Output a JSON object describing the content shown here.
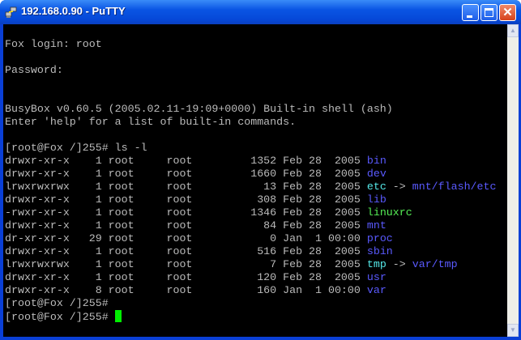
{
  "window": {
    "title": "192.168.0.90 - PuTTY",
    "icon": "putty-computers-icon",
    "buttons": [
      "minimize",
      "maximize",
      "close"
    ]
  },
  "colors": {
    "text": "#bbbbbb",
    "dir": "#5a5aff",
    "link": "#55e8e8",
    "exec": "#55ee55",
    "cursor": "#00ee00",
    "background": "#000000"
  },
  "terminal": {
    "lines": [
      [],
      [
        {
          "t": "Fox login: root"
        }
      ],
      [],
      [
        {
          "t": "Password:"
        }
      ],
      [],
      [],
      [
        {
          "t": "BusyBox v0.60.5 (2005.02.11-19:09+0000) Built-in shell (ash)"
        }
      ],
      [
        {
          "t": "Enter 'help' for a list of built-in commands."
        }
      ],
      [],
      [
        {
          "t": "[root@Fox /]255# ls -l"
        }
      ],
      [
        {
          "t": "drwxr-xr-x    1 root     root         1352 Feb 28  2005 "
        },
        {
          "t": "bin",
          "c": "dir"
        }
      ],
      [
        {
          "t": "drwxr-xr-x    1 root     root         1660 Feb 28  2005 "
        },
        {
          "t": "dev",
          "c": "dir"
        }
      ],
      [
        {
          "t": "lrwxrwxrwx    1 root     root           13 Feb 28  2005 "
        },
        {
          "t": "etc",
          "c": "link"
        },
        {
          "t": " -> "
        },
        {
          "t": "mnt/flash/etc",
          "c": "dir"
        }
      ],
      [
        {
          "t": "drwxr-xr-x    1 root     root          308 Feb 28  2005 "
        },
        {
          "t": "lib",
          "c": "dir"
        }
      ],
      [
        {
          "t": "-rwxr-xr-x    1 root     root         1346 Feb 28  2005 "
        },
        {
          "t": "linuxrc",
          "c": "exec"
        }
      ],
      [
        {
          "t": "drwxr-xr-x    1 root     root           84 Feb 28  2005 "
        },
        {
          "t": "mnt",
          "c": "dir"
        }
      ],
      [
        {
          "t": "dr-xr-xr-x   29 root     root            0 Jan  1 00:00 "
        },
        {
          "t": "proc",
          "c": "dir"
        }
      ],
      [
        {
          "t": "drwxr-xr-x    1 root     root          516 Feb 28  2005 "
        },
        {
          "t": "sbin",
          "c": "dir"
        }
      ],
      [
        {
          "t": "lrwxrwxrwx    1 root     root            7 Feb 28  2005 "
        },
        {
          "t": "tmp",
          "c": "link"
        },
        {
          "t": " -> "
        },
        {
          "t": "var/tmp",
          "c": "dir"
        }
      ],
      [
        {
          "t": "drwxr-xr-x    1 root     root          120 Feb 28  2005 "
        },
        {
          "t": "usr",
          "c": "dir"
        }
      ],
      [
        {
          "t": "drwxr-xr-x    8 root     root          160 Jan  1 00:00 "
        },
        {
          "t": "var",
          "c": "dir"
        }
      ],
      [
        {
          "t": "[root@Fox /]255#"
        }
      ],
      [
        {
          "t": "[root@Fox /]255# "
        },
        {
          "cursor": true
        }
      ]
    ]
  }
}
